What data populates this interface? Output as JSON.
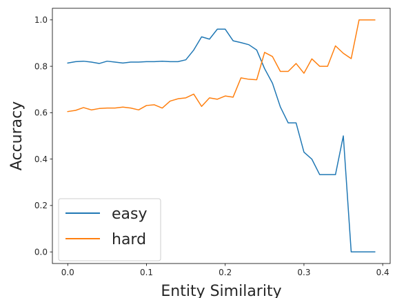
{
  "chart_data": {
    "type": "line",
    "title": "",
    "xlabel": "Entity Similarity",
    "ylabel": "Accuracy",
    "xlim": [
      -0.0195,
      0.4095
    ],
    "ylim": [
      -0.05,
      1.05
    ],
    "xticks": [
      0.0,
      0.1,
      0.2,
      0.3,
      0.4
    ],
    "xtick_labels": [
      "0.0",
      "0.1",
      "0.2",
      "0.3",
      "0.4"
    ],
    "yticks": [
      0.0,
      0.2,
      0.4,
      0.6,
      0.8,
      1.0
    ],
    "ytick_labels": [
      "0.0",
      "0.2",
      "0.4",
      "0.6",
      "0.8",
      "1.0"
    ],
    "grid": false,
    "legend_position": "lower-left",
    "x": [
      0.0,
      0.01,
      0.02,
      0.03,
      0.04,
      0.05,
      0.06,
      0.07,
      0.08,
      0.09,
      0.1,
      0.11,
      0.12,
      0.13,
      0.14,
      0.15,
      0.16,
      0.17,
      0.18,
      0.19,
      0.2,
      0.21,
      0.22,
      0.23,
      0.24,
      0.25,
      0.26,
      0.27,
      0.28,
      0.29,
      0.3,
      0.31,
      0.32,
      0.33,
      0.34,
      0.35,
      0.36,
      0.37,
      0.38,
      0.39
    ],
    "series": [
      {
        "name": "easy",
        "color": "#1f77b4",
        "values": [
          0.814,
          0.82,
          0.822,
          0.818,
          0.812,
          0.822,
          0.818,
          0.814,
          0.818,
          0.818,
          0.82,
          0.82,
          0.822,
          0.82,
          0.82,
          0.828,
          0.87,
          0.927,
          0.917,
          0.96,
          0.96,
          0.91,
          0.902,
          0.893,
          0.87,
          0.79,
          0.727,
          0.625,
          0.556,
          0.556,
          0.43,
          0.4,
          0.333,
          0.333,
          0.333,
          0.5,
          0.0,
          0.0,
          0.0,
          0.0
        ]
      },
      {
        "name": "hard",
        "color": "#ff7f0e",
        "values": [
          0.605,
          0.61,
          0.622,
          0.612,
          0.618,
          0.62,
          0.62,
          0.624,
          0.62,
          0.612,
          0.631,
          0.634,
          0.62,
          0.65,
          0.66,
          0.664,
          0.68,
          0.627,
          0.664,
          0.658,
          0.672,
          0.667,
          0.75,
          0.744,
          0.742,
          0.86,
          0.842,
          0.778,
          0.778,
          0.812,
          0.77,
          0.832,
          0.8,
          0.8,
          0.888,
          0.856,
          0.833,
          1.0,
          1.0,
          1.0
        ]
      }
    ]
  }
}
